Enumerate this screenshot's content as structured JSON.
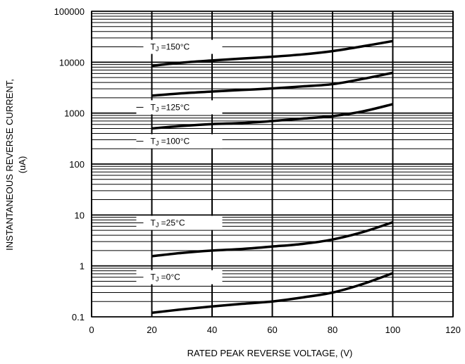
{
  "chart_data": {
    "type": "line",
    "title": "",
    "xlabel": "RATED PEAK REVERSE VOLTAGE, (V)",
    "ylabel_line1": "INSTANTANEOUS REVERSE CURRENT,",
    "ylabel_line2": "(uA)",
    "xlim": [
      0,
      120
    ],
    "ylim": [
      0.1,
      100000
    ],
    "yscale": "log",
    "grid": true,
    "x_ticks": [
      "0",
      "20",
      "40",
      "60",
      "80",
      "100",
      "120"
    ],
    "y_ticks": [
      "0.1",
      "1",
      "10",
      "100",
      "1000",
      "10000",
      "100000"
    ],
    "series": [
      {
        "x": [
          20,
          30,
          40,
          50,
          60,
          70,
          80,
          90,
          100
        ],
        "y": [
          8500,
          9800,
          10800,
          11800,
          12800,
          14200,
          16500,
          20500,
          26000
        ]
      },
      {
        "x": [
          20,
          30,
          40,
          50,
          60,
          70,
          80,
          90,
          100
        ],
        "y": [
          2200,
          2450,
          2650,
          2850,
          3050,
          3350,
          3700,
          4700,
          6200
        ]
      },
      {
        "x": [
          20,
          30,
          40,
          50,
          60,
          70,
          80,
          90,
          100
        ],
        "y": [
          500,
          560,
          610,
          640,
          700,
          780,
          870,
          1080,
          1500
        ]
      },
      {
        "x": [
          20,
          30,
          40,
          50,
          60,
          70,
          80,
          90,
          100
        ],
        "y": [
          1.55,
          1.8,
          2.0,
          2.15,
          2.4,
          2.7,
          3.3,
          4.6,
          7.2
        ]
      },
      {
        "x": [
          20,
          30,
          40,
          50,
          60,
          70,
          80,
          90,
          100
        ],
        "y": [
          0.12,
          0.14,
          0.16,
          0.18,
          0.2,
          0.24,
          0.3,
          0.44,
          0.72
        ]
      }
    ],
    "annotations": [
      {
        "main": "T",
        "sub": "J",
        "rest": " =150°C",
        "anchor_x": 20,
        "anchor_y": 20000
      },
      {
        "main": "T",
        "sub": "J",
        "rest": " =125°C",
        "anchor_x": 20,
        "anchor_y": 1300
      },
      {
        "main": "T",
        "sub": "J",
        "rest": " =100°C",
        "anchor_x": 20,
        "anchor_y": 280
      },
      {
        "main": "T",
        "sub": "J",
        "rest": " =25°C",
        "anchor_x": 20,
        "anchor_y": 7
      },
      {
        "main": "T",
        "sub": "J",
        "rest": " =0°C",
        "anchor_x": 20,
        "anchor_y": 0.6
      }
    ]
  }
}
